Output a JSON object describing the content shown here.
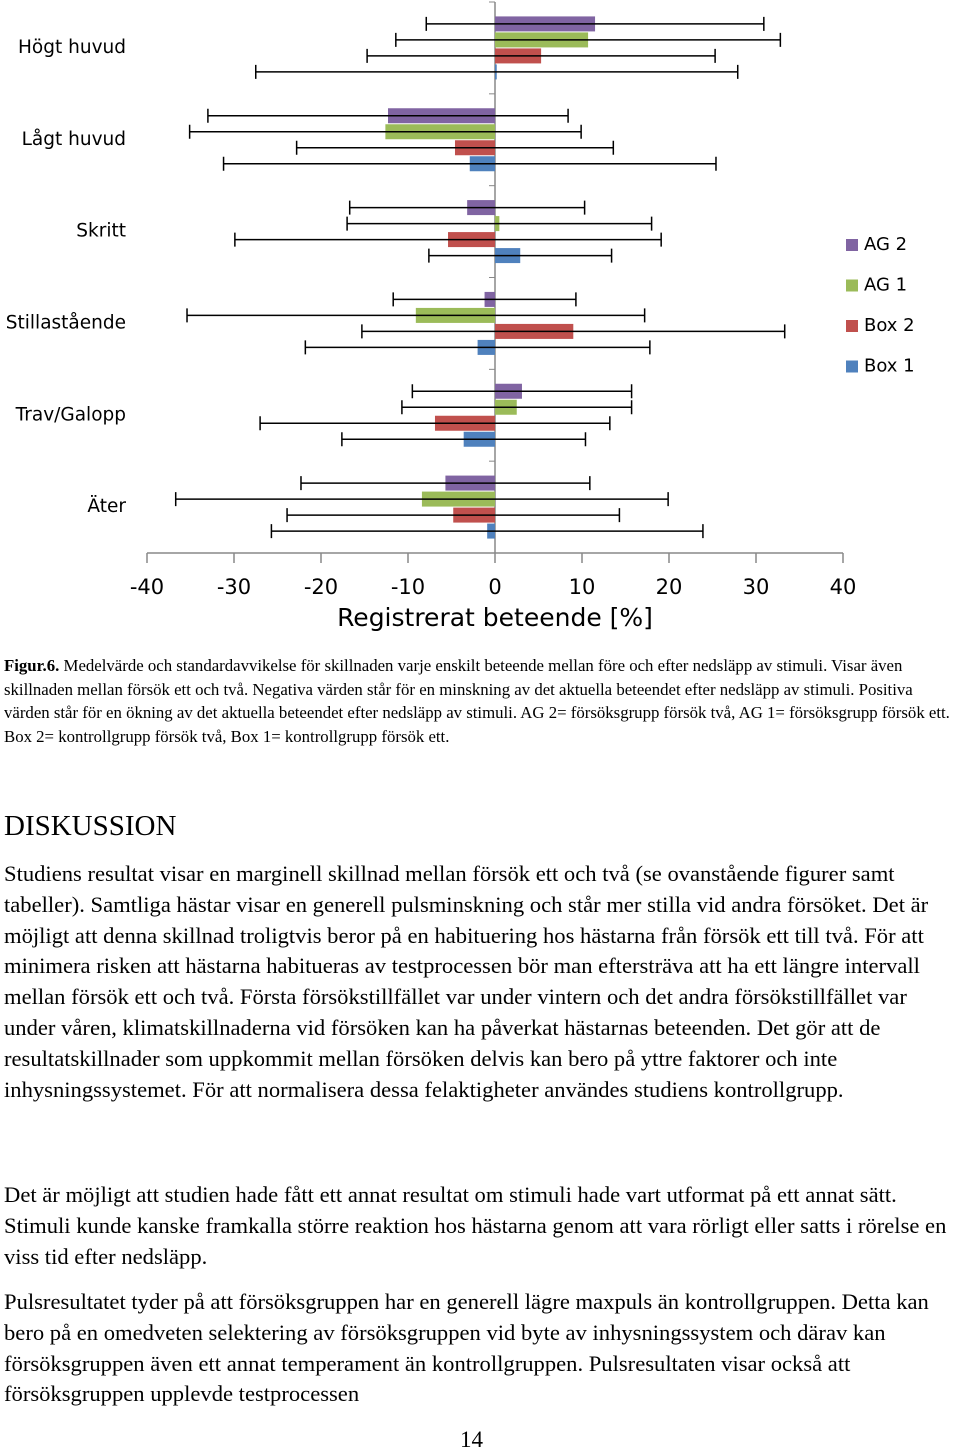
{
  "chart_data": {
    "type": "bar",
    "orientation": "horizontal",
    "x_label": "Registrerat beteende [%]",
    "categories": [
      "Högt huvud",
      "Lågt huvud",
      "Skritt",
      "Stillastående",
      "Trav/Galopp",
      "Äter"
    ],
    "series": [
      {
        "name": "AG 2",
        "color": "#8064a2",
        "values": [
          11.5,
          -12.3,
          -3.2,
          -1.2,
          3.1,
          -5.7
        ],
        "errors": [
          19.4,
          20.7,
          13.5,
          10.5,
          12.6,
          16.6
        ]
      },
      {
        "name": "AG 1",
        "color": "#9bbb59",
        "values": [
          10.7,
          -12.6,
          0.5,
          -9.1,
          2.5,
          -8.4
        ],
        "errors": [
          22.1,
          22.5,
          17.5,
          26.3,
          13.2,
          28.3
        ]
      },
      {
        "name": "Box 2",
        "color": "#c0504d",
        "values": [
          5.3,
          -4.6,
          -5.4,
          9.0,
          -6.9,
          -4.8
        ],
        "errors": [
          20.0,
          18.2,
          24.5,
          24.3,
          20.1,
          19.1
        ]
      },
      {
        "name": "Box 1",
        "color": "#4f81bd",
        "values": [
          0.2,
          -2.9,
          2.9,
          -2.0,
          -3.6,
          -0.9
        ],
        "errors": [
          27.7,
          28.3,
          10.5,
          19.8,
          14.0,
          24.8
        ]
      }
    ],
    "xlim": [
      -40,
      40
    ],
    "xticks": [
      -40,
      -30,
      -20,
      -10,
      0,
      10,
      20,
      30,
      40
    ],
    "legend": "right"
  },
  "caption": {
    "label": "Figur.6.",
    "text": "Medelvärde och standardavvikelse för skillnaden varje enskilt beteende mellan före och efter nedsläpp av stimuli. Visar även skillnaden mellan försök ett och två. Negativa värden står för en minskning av det aktuella beteendet efter nedsläpp av stimuli. Positiva värden står för en ökning av det aktuella beteendet efter nedsläpp av stimuli. AG 2= försöksgrupp försök två, AG 1= försöksgrupp försök ett. Box 2= kontrollgrupp försök två, Box 1= kontrollgrupp försök ett."
  },
  "heading": "DISKUSSION",
  "paragraphs": [
    "Studiens resultat visar en marginell skillnad mellan försök ett och två (se ovanstående figurer samt tabeller). Samtliga hästar visar en generell pulsminskning och står mer stilla vid andra försöket. Det är möjligt att denna skillnad troligtvis beror på en habituering hos hästarna från försök ett till två. För att minimera risken att hästarna habitueras av testprocessen bör man eftersträva att ha ett längre intervall mellan försök ett och två. Första försökstillfället var under vintern och det andra försökstillfället var under våren, klimatskillnaderna vid försöken kan ha påverkat hästarnas beteenden. Det gör att de resultatskillnader som uppkommit mellan försöken delvis kan bero på yttre faktorer och inte inhysningssystemet. För att normalisera dessa felaktigheter användes studiens kontrollgrupp.",
    "Det är möjligt att studien hade fått ett annat resultat om stimuli hade vart utformat på ett annat sätt. Stimuli kunde kanske framkalla större reaktion hos hästarna genom att vara rörligt eller satts i rörelse en viss tid efter nedsläpp.",
    "Pulsresultatet tyder på att försöksgruppen har en generell lägre maxpuls än kontrollgruppen. Detta kan bero på en omedveten selektering av försöksgruppen vid byte av inhysningssystem och därav kan försöksgruppen även ett annat temperament än kontrollgruppen. Pulsresultaten visar också att försöksgruppen upplevde testprocessen"
  ],
  "page_number": "14"
}
